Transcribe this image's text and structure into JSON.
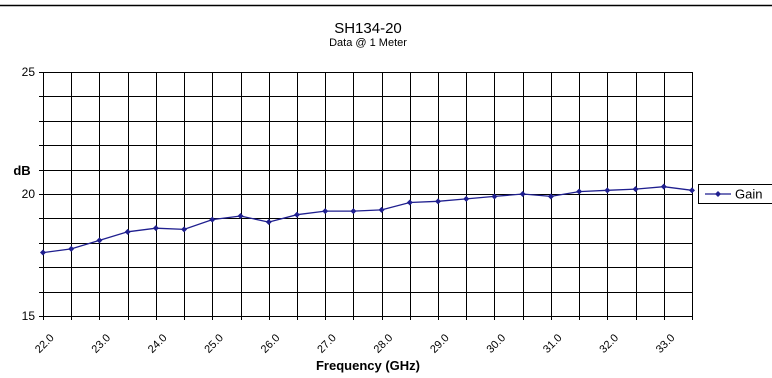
{
  "chart_data": {
    "type": "line",
    "title": "SH134-20",
    "subtitle": "Data @ 1 Meter",
    "xlabel": "Frequency (GHz)",
    "ylabel": "dB",
    "xlim": [
      22.0,
      33.5
    ],
    "ylim": [
      15,
      25
    ],
    "x_tick_labels": [
      "22.0",
      "23.0",
      "24.0",
      "25.0",
      "26.0",
      "27.0",
      "28.0",
      "29.0",
      "30.0",
      "31.0",
      "32.0",
      "33.0"
    ],
    "y_tick_labels": [
      "15",
      "20",
      "25"
    ],
    "grid": true,
    "legend_position": "right",
    "series": [
      {
        "name": "Gain",
        "color": "#1f1f8f",
        "marker": "diamond",
        "x": [
          22.0,
          22.5,
          23.0,
          23.5,
          24.0,
          24.5,
          25.0,
          25.5,
          26.0,
          26.5,
          27.0,
          27.5,
          28.0,
          28.5,
          29.0,
          29.5,
          30.0,
          30.5,
          31.0,
          31.5,
          32.0,
          32.5,
          33.0,
          33.5
        ],
        "values": [
          17.6,
          17.75,
          18.1,
          18.45,
          18.6,
          18.55,
          18.95,
          19.1,
          18.85,
          19.15,
          19.3,
          19.3,
          19.35,
          19.65,
          19.7,
          19.8,
          19.9,
          20.0,
          19.9,
          20.1,
          20.15,
          20.2,
          20.3,
          20.15
        ]
      }
    ]
  }
}
